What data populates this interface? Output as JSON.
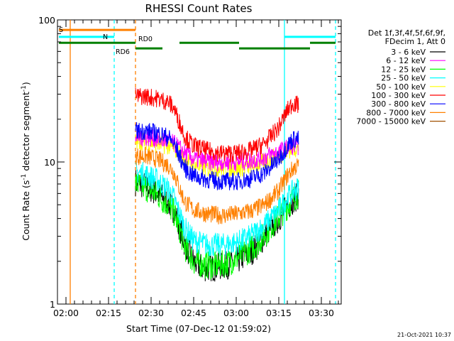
{
  "chart_data": {
    "type": "line",
    "title": "RHESSI Count Rates",
    "xlabel": "Start Time (07-Dec-12 01:59:02)",
    "ylabel": "Count Rate (s",
    "ylabel_sup": "-1",
    "ylabel_mid": " detector segment",
    "ylabel_sup2": "-1",
    "ylabel_end": ")",
    "y_scale": "log",
    "ylim": [
      1,
      100
    ],
    "xlim_minutes": [
      -3,
      97
    ],
    "x_ticks": [
      {
        "label": "02:00",
        "minute": 0
      },
      {
        "label": "02:15",
        "minute": 15
      },
      {
        "label": "02:30",
        "minute": 30
      },
      {
        "label": "02:45",
        "minute": 45
      },
      {
        "label": "03:00",
        "minute": 60
      },
      {
        "label": "03:15",
        "minute": 75
      },
      {
        "label": "03:30",
        "minute": 90
      }
    ],
    "y_ticks": [
      {
        "label": "1",
        "value": 1
      },
      {
        "label": "10",
        "value": 10
      },
      {
        "label": "100",
        "value": 100
      }
    ],
    "legend_header": [
      "Det 1f,3f,4f,5f,6f,9f,",
      "FDecim 1, Att 0"
    ],
    "legend_placement": "right",
    "series": [
      {
        "name": "3 - 6 keV",
        "color": "#000000",
        "points": [
          [
            24.5,
            7.2
          ],
          [
            28,
            6.8
          ],
          [
            32,
            6.1
          ],
          [
            36,
            5.2
          ],
          [
            38,
            4.6
          ],
          [
            40,
            3.5
          ],
          [
            42,
            2.6
          ],
          [
            45,
            2.0
          ],
          [
            48,
            1.8
          ],
          [
            52,
            1.8
          ],
          [
            55,
            1.85
          ],
          [
            58,
            1.9
          ],
          [
            60,
            2.0
          ],
          [
            63,
            2.2
          ],
          [
            66,
            2.4
          ],
          [
            69,
            2.8
          ],
          [
            72,
            3.4
          ],
          [
            75,
            4.0
          ],
          [
            78,
            4.8
          ],
          [
            80,
            5.4
          ],
          [
            82,
            5.8
          ]
        ]
      },
      {
        "name": "6 - 12 keV",
        "color": "#ff00ff",
        "points": [
          [
            24.5,
            15.0
          ],
          [
            28,
            15.0
          ],
          [
            32,
            14.5
          ],
          [
            36,
            14.0
          ],
          [
            38,
            13.5
          ],
          [
            40,
            12.5
          ],
          [
            42,
            11.5
          ],
          [
            45,
            10.5
          ],
          [
            50,
            10.0
          ],
          [
            55,
            10.0
          ],
          [
            60,
            10.0
          ],
          [
            65,
            10.2
          ],
          [
            70,
            10.8
          ],
          [
            75,
            11.8
          ],
          [
            78,
            12.5
          ],
          [
            80,
            13.0
          ],
          [
            82,
            13.0
          ]
        ]
      },
      {
        "name": "12 - 25 keV",
        "color": "#00ff00",
        "points": [
          [
            24.5,
            7.0
          ],
          [
            28,
            6.6
          ],
          [
            32,
            5.9
          ],
          [
            36,
            5.0
          ],
          [
            38,
            4.4
          ],
          [
            40,
            3.4
          ],
          [
            42,
            2.5
          ],
          [
            45,
            2.0
          ],
          [
            48,
            1.9
          ],
          [
            52,
            1.85
          ],
          [
            55,
            1.9
          ],
          [
            58,
            2.0
          ],
          [
            60,
            2.1
          ],
          [
            63,
            2.3
          ],
          [
            66,
            2.5
          ],
          [
            69,
            2.9
          ],
          [
            72,
            3.5
          ],
          [
            75,
            4.1
          ],
          [
            78,
            4.9
          ],
          [
            80,
            5.5
          ],
          [
            82,
            6.0
          ]
        ]
      },
      {
        "name": "25 - 50 keV",
        "color": "#00ffff",
        "points": [
          [
            24.5,
            8.5
          ],
          [
            28,
            8.2
          ],
          [
            32,
            7.5
          ],
          [
            36,
            6.4
          ],
          [
            38,
            5.6
          ],
          [
            40,
            4.3
          ],
          [
            42,
            3.4
          ],
          [
            45,
            2.8
          ],
          [
            50,
            2.6
          ],
          [
            55,
            2.6
          ],
          [
            60,
            2.7
          ],
          [
            65,
            3.0
          ],
          [
            70,
            3.6
          ],
          [
            75,
            4.6
          ],
          [
            78,
            5.6
          ],
          [
            80,
            6.2
          ],
          [
            82,
            6.6
          ]
        ]
      },
      {
        "name": "50 - 100 keV",
        "color": "#ffff00",
        "points": [
          [
            24.5,
            14.0
          ],
          [
            28,
            14.0
          ],
          [
            32,
            13.5
          ],
          [
            36,
            13.0
          ],
          [
            38,
            12.5
          ],
          [
            40,
            11.5
          ],
          [
            42,
            10.5
          ],
          [
            45,
            9.5
          ],
          [
            50,
            9.0
          ],
          [
            55,
            9.0
          ],
          [
            60,
            9.0
          ],
          [
            65,
            9.3
          ],
          [
            70,
            10.0
          ],
          [
            75,
            11.2
          ],
          [
            78,
            12.0
          ],
          [
            80,
            12.5
          ],
          [
            82,
            12.5
          ]
        ]
      },
      {
        "name": "100 - 300 keV",
        "color": "#ff0000",
        "points": [
          [
            24.5,
            29.0
          ],
          [
            28,
            29.0
          ],
          [
            32,
            28.0
          ],
          [
            36,
            26.5
          ],
          [
            38,
            24.0
          ],
          [
            40,
            19.0
          ],
          [
            42,
            15.0
          ],
          [
            45,
            13.0
          ],
          [
            50,
            12.0
          ],
          [
            55,
            11.5
          ],
          [
            60,
            11.5
          ],
          [
            65,
            12.0
          ],
          [
            70,
            13.5
          ],
          [
            75,
            17.5
          ],
          [
            78,
            23.0
          ],
          [
            80,
            26.0
          ],
          [
            82,
            25.0
          ]
        ]
      },
      {
        "name": "300 - 800 keV",
        "color": "#0000ff",
        "points": [
          [
            24.5,
            16.5
          ],
          [
            28,
            16.5
          ],
          [
            32,
            16.0
          ],
          [
            36,
            15.0
          ],
          [
            38,
            13.5
          ],
          [
            40,
            11.0
          ],
          [
            42,
            9.0
          ],
          [
            45,
            8.0
          ],
          [
            50,
            7.5
          ],
          [
            55,
            7.3
          ],
          [
            60,
            7.3
          ],
          [
            65,
            7.6
          ],
          [
            70,
            8.4
          ],
          [
            75,
            10.5
          ],
          [
            78,
            13.0
          ],
          [
            80,
            14.5
          ],
          [
            82,
            14.5
          ]
        ]
      },
      {
        "name": "800 - 7000 keV",
        "color": "#ff8000",
        "points": [
          [
            24.5,
            11.0
          ],
          [
            28,
            11.0
          ],
          [
            32,
            10.5
          ],
          [
            36,
            9.5
          ],
          [
            38,
            8.5
          ],
          [
            40,
            6.5
          ],
          [
            42,
            5.2
          ],
          [
            45,
            4.6
          ],
          [
            50,
            4.3
          ],
          [
            55,
            4.2
          ],
          [
            60,
            4.3
          ],
          [
            65,
            4.5
          ],
          [
            70,
            5.0
          ],
          [
            75,
            6.3
          ],
          [
            78,
            8.0
          ],
          [
            80,
            9.0
          ],
          [
            82,
            9.5
          ]
        ]
      },
      {
        "name": "7000 - 15000 keV",
        "color": "#a05000",
        "points": []
      }
    ],
    "attenuator_states": [
      {
        "label": "S",
        "color": "#ff8000",
        "start": -2.5,
        "end": 24.5,
        "value": 85
      },
      {
        "label": "N",
        "color": "#00ffff",
        "start": -2.5,
        "end": 17,
        "value": 76
      },
      {
        "label": "N",
        "color": "#00ffff",
        "start": 77,
        "end": 95,
        "value": 76
      }
    ],
    "decimation_states": [
      {
        "label": "RD0",
        "color": "#008000",
        "start": -2.5,
        "end": 24.5,
        "value": 69
      },
      {
        "label": "RD6",
        "color": "#008000",
        "start": 24.5,
        "end": 34,
        "value": 63
      },
      {
        "label": "",
        "color": "#008000",
        "start": 40,
        "end": 61,
        "value": 69
      },
      {
        "label": "",
        "color": "#008000",
        "start": 61,
        "end": 86,
        "value": 63
      },
      {
        "label": "",
        "color": "#008000",
        "start": 86,
        "end": 95,
        "value": 69
      }
    ],
    "vertical_markers": [
      {
        "minute": 1.5,
        "color": "#ff8000",
        "style": "solid"
      },
      {
        "minute": 17,
        "color": "#00ffff",
        "style": "dashed"
      },
      {
        "minute": 24.5,
        "color": "#ff8000",
        "style": "dashed"
      },
      {
        "minute": 77,
        "color": "#00ffff",
        "style": "solid"
      },
      {
        "minute": 95,
        "color": "#00ffff",
        "style": "dashed"
      }
    ],
    "footer_timestamp": "21-Oct-2021 10:37"
  }
}
